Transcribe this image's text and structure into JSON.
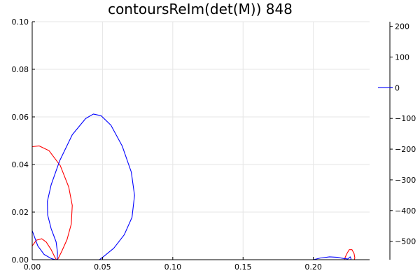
{
  "chart_data": {
    "type": "line",
    "title": "contoursReIm(det(M)) 848",
    "xlabel": "",
    "ylabel": "",
    "xlim": [
      0.0,
      0.24
    ],
    "ylim": [
      0.0,
      0.1
    ],
    "x_ticks": [
      0.0,
      0.05,
      0.1,
      0.15,
      0.2
    ],
    "x_tick_labels": [
      "0.00",
      "0.05",
      "0.10",
      "0.15",
      "0.20"
    ],
    "y_ticks": [
      0.0,
      0.02,
      0.04,
      0.06,
      0.08,
      0.1
    ],
    "y_tick_labels": [
      "0.00",
      "0.02",
      "0.04",
      "0.06",
      "0.08",
      "0.10"
    ],
    "grid": true,
    "colorbar": {
      "range": [
        -560,
        215
      ],
      "ticks": [
        200,
        100,
        0,
        -100,
        -200,
        -300,
        -400,
        -500
      ],
      "tick_labels": [
        "200",
        "100",
        "0",
        "−100",
        "−200",
        "−300",
        "−400",
        "−500"
      ],
      "legend_level": 0,
      "legend_color": "#0000ff"
    },
    "series": [
      {
        "color": "#ff0000",
        "paths": [
          [
            [
              0.0,
              0.0475
            ],
            [
              0.005,
              0.0478
            ],
            [
              0.012,
              0.0458
            ],
            [
              0.02,
              0.0395
            ],
            [
              0.026,
              0.0305
            ],
            [
              0.0285,
              0.0228
            ],
            [
              0.0278,
              0.015
            ],
            [
              0.0248,
              0.0085
            ],
            [
              0.021,
              0.0035
            ],
            [
              0.0185,
              0.0005
            ],
            [
              0.0178,
              0.0
            ]
          ],
          [
            [
              0.0,
              0.0058
            ],
            [
              0.003,
              0.0082
            ],
            [
              0.0068,
              0.0088
            ],
            [
              0.01,
              0.0074
            ],
            [
              0.0135,
              0.0042
            ],
            [
              0.016,
              0.0012
            ],
            [
              0.0172,
              0.0
            ]
          ],
          [
            [
              0.222,
              0.0
            ],
            [
              0.2235,
              0.0022
            ],
            [
              0.2255,
              0.0042
            ],
            [
              0.2275,
              0.0042
            ],
            [
              0.229,
              0.0025
            ],
            [
              0.2295,
              0.0008
            ],
            [
              0.2292,
              0.0
            ]
          ]
        ]
      },
      {
        "color": "#0000ff",
        "paths": [
          [
            [
              0.0,
              0.0122
            ],
            [
              0.004,
              0.0058
            ],
            [
              0.0085,
              0.0022
            ],
            [
              0.0135,
              0.0005
            ],
            [
              0.0165,
              0.0
            ]
          ],
          [
            [
              0.0178,
              0.0
            ],
            [
              0.018,
              0.003
            ],
            [
              0.017,
              0.0075
            ],
            [
              0.0135,
              0.013
            ],
            [
              0.011,
              0.0188
            ],
            [
              0.0108,
              0.0245
            ],
            [
              0.0135,
              0.0315
            ],
            [
              0.0195,
              0.0415
            ],
            [
              0.0285,
              0.0525
            ],
            [
              0.038,
              0.0593
            ],
            [
              0.0435,
              0.0612
            ],
            [
              0.049,
              0.0605
            ],
            [
              0.056,
              0.0565
            ],
            [
              0.064,
              0.0478
            ],
            [
              0.0705,
              0.0368
            ],
            [
              0.0728,
              0.027
            ],
            [
              0.071,
              0.0178
            ],
            [
              0.0655,
              0.0105
            ],
            [
              0.058,
              0.0048
            ],
            [
              0.0505,
              0.0012
            ],
            [
              0.0478,
              0.0
            ]
          ],
          [
            [
              0.2,
              0.0
            ],
            [
              0.205,
              0.0007
            ],
            [
              0.2115,
              0.0012
            ],
            [
              0.217,
              0.001
            ],
            [
              0.2215,
              0.0005
            ],
            [
              0.2245,
              0.0003
            ],
            [
              0.2262,
              0.0012
            ],
            [
              0.2268,
              0.0004
            ],
            [
              0.2265,
              0.0
            ]
          ]
        ]
      }
    ]
  }
}
